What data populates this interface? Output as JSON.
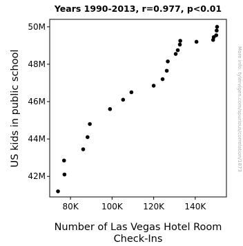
{
  "chart_data": {
    "type": "scatter",
    "title": "Years 1990-2013, r=0.977, p<0.01",
    "xlabel_lines": [
      "Number of Las Vegas Hotel Room",
      "Check-Ins"
    ],
    "ylabel": "US kids in public school",
    "side_note": "More info: tylervigen.com/spurious/correlation/1873",
    "xlim": [
      70000,
      155000
    ],
    "ylim": [
      40900000,
      50400000
    ],
    "x_ticks": [
      {
        "value": 80000,
        "label": "80K"
      },
      {
        "value": 100000,
        "label": "100K"
      },
      {
        "value": 120000,
        "label": "120K"
      },
      {
        "value": 140000,
        "label": "140K"
      }
    ],
    "y_ticks": [
      {
        "value": 42000000,
        "label": "42M"
      },
      {
        "value": 44000000,
        "label": "44M"
      },
      {
        "value": 46000000,
        "label": "46M"
      },
      {
        "value": 48000000,
        "label": "48M"
      },
      {
        "value": 50000000,
        "label": "50M"
      }
    ],
    "grid": false,
    "marker_color": "#000000",
    "points": [
      {
        "x": 74000,
        "y": 41200000
      },
      {
        "x": 77100,
        "y": 42100000
      },
      {
        "x": 76900,
        "y": 42850000
      },
      {
        "x": 86100,
        "y": 43450000
      },
      {
        "x": 88200,
        "y": 44100000
      },
      {
        "x": 89300,
        "y": 44800000
      },
      {
        "x": 99000,
        "y": 45600000
      },
      {
        "x": 105300,
        "y": 46100000
      },
      {
        "x": 109300,
        "y": 46500000
      },
      {
        "x": 120000,
        "y": 46850000
      },
      {
        "x": 124300,
        "y": 47200000
      },
      {
        "x": 126300,
        "y": 47650000
      },
      {
        "x": 126800,
        "y": 48150000
      },
      {
        "x": 130600,
        "y": 48550000
      },
      {
        "x": 131600,
        "y": 48750000
      },
      {
        "x": 132600,
        "y": 49050000
      },
      {
        "x": 132800,
        "y": 49250000
      },
      {
        "x": 140600,
        "y": 49200000
      },
      {
        "x": 148600,
        "y": 49300000
      },
      {
        "x": 148900,
        "y": 49450000
      },
      {
        "x": 150100,
        "y": 49550000
      },
      {
        "x": 150300,
        "y": 49800000
      },
      {
        "x": 150500,
        "y": 50000000
      }
    ]
  }
}
